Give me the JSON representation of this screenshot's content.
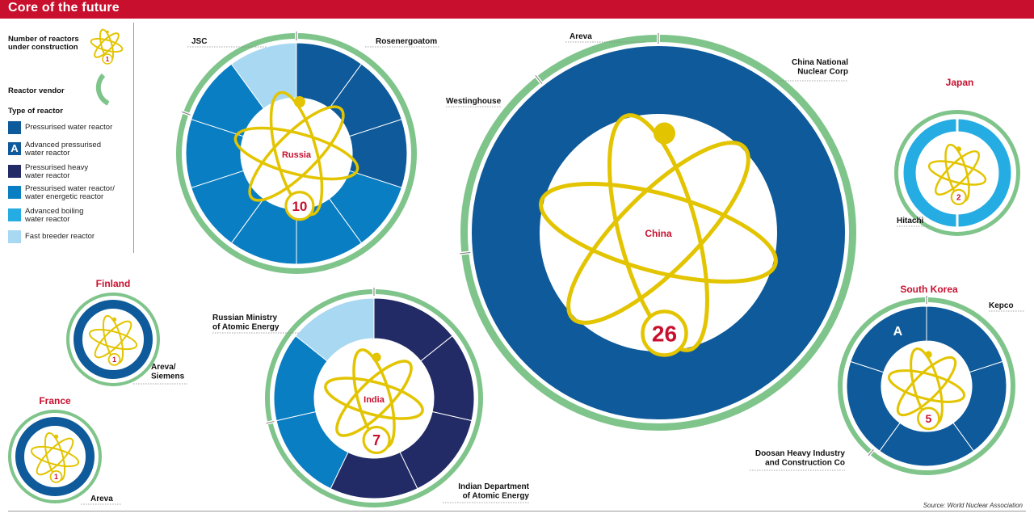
{
  "header": {
    "title": "Core of the future"
  },
  "legend": {
    "reactors_label": "Number of reactors\nunder construction",
    "reactors_sample": "1",
    "vendor_label": "Reactor vendor",
    "type_heading": "Type of reactor",
    "types": [
      {
        "key": "pwr",
        "label": "Pressurised water reactor",
        "color": "#0e5a9a",
        "letter": ""
      },
      {
        "key": "apwr",
        "label": "Advanced pressurised\nwater reactor",
        "color": "#0e5a9a",
        "letter": "A"
      },
      {
        "key": "phwr",
        "label": "Pressurised heavy\nwater reactor",
        "color": "#232b66",
        "letter": ""
      },
      {
        "key": "vver",
        "label": "Pressurised water reactor/\nwater energetic reactor",
        "color": "#0a7ec2",
        "letter": ""
      },
      {
        "key": "abwr",
        "label": "Advanced boiling\nwater reactor",
        "color": "#25ace2",
        "letter": ""
      },
      {
        "key": "fbr",
        "label": "Fast breeder reactor",
        "color": "#a9d8f2",
        "letter": ""
      }
    ]
  },
  "colors": {
    "ring": "#7fc48a",
    "atom": "#e3c400",
    "accent": "#c8102e",
    "segment_gap": "#ffffff"
  },
  "chart_data": {
    "type": "donut",
    "countries": [
      {
        "name": "China",
        "count": 26,
        "reactor_types": [
          "pwr"
        ],
        "vendors": [
          "Areva",
          "China National\nNuclear Corp",
          "Westinghouse"
        ]
      },
      {
        "name": "Russia",
        "count": 10,
        "reactor_types": [
          "pwr",
          "pwr",
          "pwr",
          "vver",
          "vver",
          "vver",
          "vver",
          "vver",
          "vver",
          "fbr"
        ],
        "vendors": [
          "JSC",
          "Rosenergoatom"
        ]
      },
      {
        "name": "India",
        "count": 7,
        "reactor_types": [
          "phwr",
          "phwr",
          "phwr",
          "phwr",
          "vver",
          "vver",
          "fbr"
        ],
        "vendors": [
          "Russian Ministry\nof Atomic Energy",
          "Indian Department\nof Atomic Energy"
        ]
      },
      {
        "name": "South Korea",
        "count": 5,
        "reactor_types": [
          "pwr",
          "pwr",
          "pwr",
          "pwr",
          "apwr"
        ],
        "vendors": [
          "Kepco",
          "Doosan Heavy Industry\nand Construction Co"
        ]
      },
      {
        "name": "Japan",
        "count": 2,
        "reactor_types": [
          "abwr",
          "abwr"
        ],
        "vendors": [
          "Hitachi"
        ]
      },
      {
        "name": "Finland",
        "count": 1,
        "reactor_types": [
          "pwr"
        ],
        "vendors": [
          "Areva/\nSiemens"
        ]
      },
      {
        "name": "France",
        "count": 1,
        "reactor_types": [
          "pwr"
        ],
        "vendors": [
          "Areva"
        ]
      }
    ],
    "source": "Source: World Nuclear Association"
  }
}
